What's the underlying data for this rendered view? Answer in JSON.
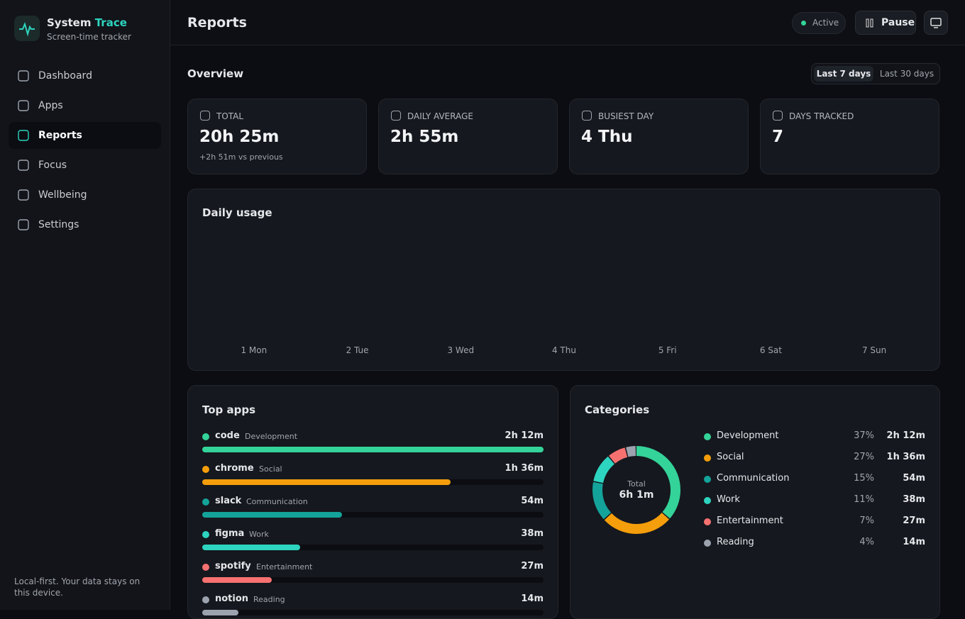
{
  "sidebar": {
    "brand": {
      "name": "System",
      "accent": "Trace",
      "tagline": "Screen-time tracker"
    },
    "nav": [
      "Dashboard",
      "Apps",
      "Reports",
      "Focus",
      "Wellbeing",
      "Settings"
    ],
    "active": 2,
    "footer": "Local-first. Your data stays on this device."
  },
  "header": {
    "title": "Reports",
    "status": "Active",
    "pause": "Pause"
  },
  "overview": {
    "title": "Overview",
    "ranges": [
      "Last 7 days",
      "Last 30 days"
    ],
    "stats": [
      {
        "label": "TOTAL",
        "value": "20h 25m",
        "note": "+2h 51m vs previous"
      },
      {
        "label": "DAILY AVERAGE",
        "value": "2h 55m"
      },
      {
        "label": "BUSIEST DAY",
        "value": "4 Thu"
      },
      {
        "label": "DAYS TRACKED",
        "value": "7"
      }
    ]
  },
  "daily_usage": {
    "type": "bar",
    "title": "Daily usage",
    "categories": [
      "1 Mon",
      "2 Tue",
      "3 Wed",
      "4 Thu",
      "5 Fri",
      "6 Sat",
      "7 Sun"
    ]
  },
  "top_apps": {
    "type": "bar",
    "title": "Top apps",
    "categories": [
      "code",
      "chrome",
      "slack",
      "figma",
      "spotify",
      "notion"
    ],
    "groups": [
      "Development",
      "Social",
      "Communication",
      "Work",
      "Entertainment",
      "Reading"
    ],
    "values": [
      132,
      96,
      54,
      38,
      27,
      14
    ],
    "value_labels": [
      "2h 12m",
      "1h 36m",
      "54m",
      "38m",
      "27m",
      "14m"
    ],
    "colors": [
      "#34d399",
      "#f59e0b",
      "#14a39a",
      "#2dd4bf",
      "#f87171",
      "#9ca3af"
    ]
  },
  "categories": {
    "type": "pie",
    "title": "Categories",
    "total_label": "Total",
    "total": "6h 1m",
    "categories": [
      "Development",
      "Social",
      "Communication",
      "Work",
      "Entertainment",
      "Reading"
    ],
    "values": [
      37,
      27,
      15,
      11,
      7,
      4
    ],
    "value_labels": [
      "37%",
      "27%",
      "15%",
      "11%",
      "7%",
      "4%"
    ],
    "times": [
      "2h 12m",
      "1h 36m",
      "54m",
      "38m",
      "27m",
      "14m"
    ],
    "colors": [
      "#34d399",
      "#f59e0b",
      "#14a39a",
      "#2dd4bf",
      "#f87171",
      "#9ca3af"
    ]
  }
}
